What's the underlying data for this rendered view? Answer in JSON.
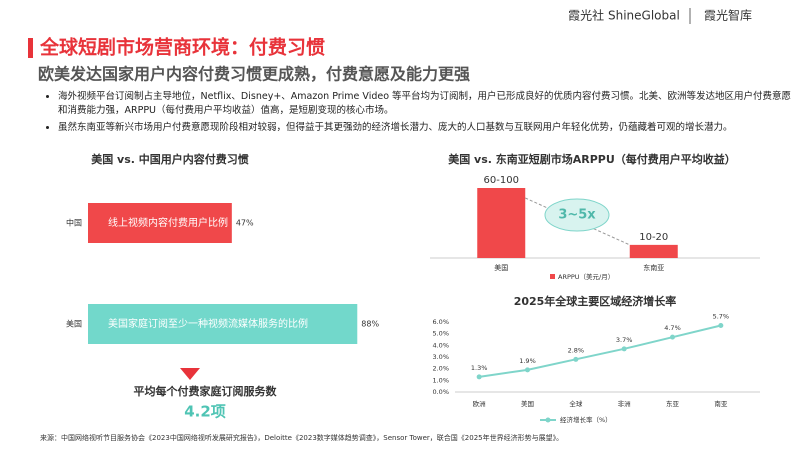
{
  "brand": {
    "name": "霞光社 ShineGlobal",
    "sub": "霞光智库"
  },
  "title": "全球短剧市场营商环境：付费习惯",
  "subtitle": "欧美发达国家用户内容付费习惯更成熟，付费意愿及能力更强",
  "bullets": [
    "海外视频平台订阅制占主导地位，Netflix、Disney+、Amazon Prime Video 等平台均为订阅制，用户已形成良好的优质内容付费习惯。北美、欧洲等发达地区用户付费意愿和消费能力强，ARPPU（每付费用户平均收益）值高，是短剧变现的核心市场。",
    "虽然东南亚等新兴市场用户付费意愿现阶段相对较弱，但得益于其更强劲的经济增长潜力、庞大的人口基数与互联网用户年轻化优势，仍蕴藏着可观的增长潜力。"
  ],
  "chart_data": [
    {
      "type": "bar",
      "horizontal": true,
      "title": "美国 vs. 中国用户内容付费习惯",
      "categories": [
        "中国",
        "美国"
      ],
      "values": [
        47,
        88
      ],
      "value_labels": [
        "47%",
        "88%"
      ],
      "bar_labels": [
        "线上视频内容付费用户比例",
        "美国家庭订阅至少一种视频流媒体服务的比例"
      ],
      "colors": [
        "#f0484a",
        "#72d8cb"
      ],
      "xlim": [
        0,
        100
      ],
      "callout": {
        "label": "平均每个付费家庭订阅服务数",
        "value": "4.2项"
      }
    },
    {
      "type": "bar",
      "title": "美国 vs. 东南亚短剧市场ARPPU（每付费用户平均收益）",
      "categories": [
        "美国",
        "东南亚"
      ],
      "series": [
        {
          "name": "ARPPU（美元/月）",
          "color": "#f0484a",
          "values": [
            80,
            15
          ],
          "value_labels": [
            "60-100",
            "10-20"
          ]
        }
      ],
      "ylim": [
        0,
        100
      ],
      "annotation": "3~5x"
    },
    {
      "type": "line",
      "title": "2025年全球主要区域经济增长率",
      "categories": [
        "欧洲",
        "美国",
        "全球",
        "非洲",
        "东亚",
        "南亚"
      ],
      "series": [
        {
          "name": "经济增长率（%）",
          "color": "#7fd5ca",
          "values": [
            1.3,
            1.9,
            2.8,
            3.7,
            4.7,
            5.7
          ],
          "value_labels": [
            "1.3%",
            "1.9%",
            "2.8%",
            "3.7%",
            "4.7%",
            "5.7%"
          ]
        }
      ],
      "ylim": [
        0,
        6
      ],
      "yticks": [
        {
          "value": 0,
          "label": "0.0%"
        },
        {
          "value": 1,
          "label": "1.0%"
        },
        {
          "value": 2,
          "label": "2.0%"
        },
        {
          "value": 3,
          "label": "3.0%"
        },
        {
          "value": 4,
          "label": "4.0%"
        },
        {
          "value": 5,
          "label": "5.0%"
        },
        {
          "value": 6,
          "label": "6.0%"
        }
      ]
    }
  ],
  "source": "来源：中国网络视听节目服务协会《2023中国网络视听发展研究报告》，Deloitte《2023数字媒体趋势调查》，Sensor Tower，联合国《2025年世界经济形势与展望》。"
}
